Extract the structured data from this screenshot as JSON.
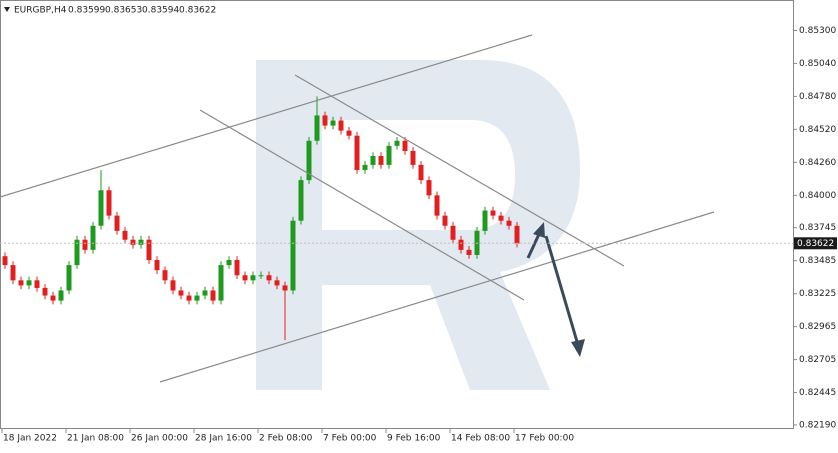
{
  "chart_data": {
    "type": "candlestick",
    "symbol": "EURGBP,H4",
    "header_ohlc": [
      0.83599,
      0.83653,
      0.83594,
      0.83622
    ],
    "last_price": 0.83622,
    "x_tick_labels": [
      "18 Jan 2022",
      "21 Jan 08:00",
      "26 Jan 00:00",
      "28 Jan 16:00",
      "2 Feb 08:00",
      "7 Feb 00:00",
      "9 Feb 16:00",
      "14 Feb 08:00",
      "17 Feb 00:00"
    ],
    "ylim": [
      0.8215,
      0.8554
    ],
    "yticks": [
      {
        "value": 0.853,
        "label": "0.85300"
      },
      {
        "value": 0.8504,
        "label": "0.85040"
      },
      {
        "value": 0.8478,
        "label": "0.84780"
      },
      {
        "value": 0.8452,
        "label": "0.84520"
      },
      {
        "value": 0.8426,
        "label": "0.84260"
      },
      {
        "value": 0.84,
        "label": "0.84000"
      },
      0.83745,
      0.83485,
      0.83225,
      0.82965,
      0.82705,
      0.82445,
      {
        "value": 0.8219,
        "label": "0.82190"
      }
    ],
    "up_color": "#1f9a1f",
    "down_color": "#e02020",
    "open": [
      0.8352,
      0.8345,
      0.8333,
      0.8329,
      0.8333,
      0.8327,
      0.8321,
      0.8317,
      0.8325,
      0.8345,
      0.8365,
      0.8357,
      0.8376,
      0.8404,
      0.8384,
      0.8372,
      0.8365,
      0.8361,
      0.8365,
      0.8349,
      0.8341,
      0.8333,
      0.8325,
      0.8321,
      0.8317,
      0.8321,
      0.8325,
      0.8317,
      0.8345,
      0.8349,
      0.8337,
      0.8333,
      0.8337,
      0.8337,
      0.8333,
      0.8329,
      0.8325,
      0.838,
      0.8412,
      0.8443,
      0.8463,
      0.8455,
      0.8459,
      0.8451,
      0.8447,
      0.842,
      0.8424,
      0.8431,
      0.8424,
      0.8439,
      0.8443,
      0.8435,
      0.8424,
      0.8412,
      0.84,
      0.8384,
      0.8376,
      0.8365,
      0.8357,
      0.8353,
      0.8372,
      0.8388,
      0.8384,
      0.838,
      0.8376
    ],
    "high": [
      0.8355,
      0.8348,
      0.8336,
      0.8336,
      0.8336,
      0.833,
      0.8324,
      0.8328,
      0.8348,
      0.8368,
      0.8368,
      0.8379,
      0.842,
      0.8407,
      0.8387,
      0.8375,
      0.8368,
      0.8368,
      0.8368,
      0.8352,
      0.8344,
      0.8336,
      0.8328,
      0.8324,
      0.8324,
      0.8328,
      0.8328,
      0.8348,
      0.8352,
      0.8352,
      0.834,
      0.834,
      0.834,
      0.834,
      0.8336,
      0.8332,
      0.8383,
      0.8415,
      0.8446,
      0.8478,
      0.8466,
      0.8462,
      0.8462,
      0.8454,
      0.845,
      0.8427,
      0.8434,
      0.8434,
      0.8442,
      0.8446,
      0.8446,
      0.8438,
      0.8427,
      0.8415,
      0.8403,
      0.8387,
      0.8379,
      0.8368,
      0.836,
      0.8375,
      0.8391,
      0.8391,
      0.8387,
      0.8383,
      0.8379
    ],
    "low": [
      0.8342,
      0.833,
      0.8326,
      0.8326,
      0.8324,
      0.8318,
      0.8314,
      0.8314,
      0.8322,
      0.8342,
      0.8354,
      0.8354,
      0.8373,
      0.8381,
      0.8369,
      0.8362,
      0.8358,
      0.8358,
      0.8346,
      0.8338,
      0.833,
      0.8322,
      0.8318,
      0.8314,
      0.8314,
      0.8318,
      0.8314,
      0.8314,
      0.8342,
      0.8334,
      0.833,
      0.833,
      0.8334,
      0.833,
      0.8326,
      0.8286,
      0.8322,
      0.8377,
      0.8409,
      0.844,
      0.8452,
      0.8452,
      0.8448,
      0.8444,
      0.8417,
      0.8417,
      0.8421,
      0.8421,
      0.8421,
      0.8436,
      0.8432,
      0.8421,
      0.8409,
      0.8397,
      0.8381,
      0.8373,
      0.8362,
      0.8354,
      0.835,
      0.835,
      0.8369,
      0.8381,
      0.8377,
      0.8373,
      0.8359
    ],
    "close": [
      0.8345,
      0.8333,
      0.8329,
      0.8333,
      0.8327,
      0.8321,
      0.8317,
      0.8325,
      0.8345,
      0.8365,
      0.8357,
      0.8376,
      0.8404,
      0.8384,
      0.8372,
      0.8365,
      0.8361,
      0.8365,
      0.8349,
      0.8341,
      0.8333,
      0.8325,
      0.8321,
      0.8317,
      0.8321,
      0.8325,
      0.8317,
      0.8345,
      0.8349,
      0.8337,
      0.8333,
      0.8337,
      0.8337,
      0.8333,
      0.8329,
      0.8325,
      0.838,
      0.8412,
      0.8443,
      0.8463,
      0.8455,
      0.8459,
      0.8451,
      0.8447,
      0.842,
      0.8424,
      0.8431,
      0.8424,
      0.8439,
      0.8443,
      0.8435,
      0.8424,
      0.8412,
      0.84,
      0.8384,
      0.8376,
      0.8365,
      0.8357,
      0.8353,
      0.8372,
      0.8388,
      0.8384,
      0.838,
      0.8376,
      0.8362
    ]
  }
}
